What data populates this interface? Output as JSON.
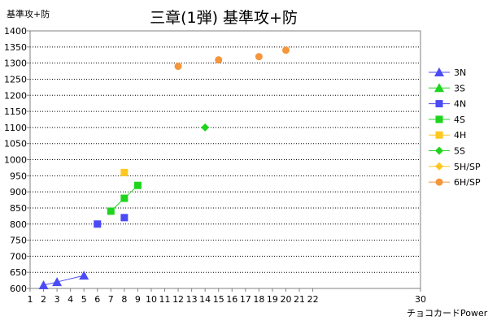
{
  "chart_data": {
    "type": "scatter",
    "title": "三章(1弾) 基準攻+防",
    "ylabel": "基準攻+防",
    "xlabel": "チョコカードPower",
    "xlim": [
      1,
      30
    ],
    "ylim": [
      600,
      1400
    ],
    "x_ticks": [
      1,
      2,
      3,
      4,
      5,
      6,
      7,
      8,
      9,
      10,
      11,
      12,
      13,
      14,
      15,
      16,
      17,
      18,
      19,
      20,
      21,
      22,
      30
    ],
    "y_ticks": [
      600,
      650,
      700,
      750,
      800,
      850,
      900,
      950,
      1000,
      1050,
      1100,
      1150,
      1200,
      1250,
      1300,
      1350,
      1400
    ],
    "grid": true,
    "legend_position": "right",
    "series": [
      {
        "name": "3N",
        "marker": "triangle",
        "color": "#4b4bf5",
        "line": true,
        "points": [
          [
            2,
            610
          ],
          [
            3,
            620
          ],
          [
            5,
            640
          ]
        ]
      },
      {
        "name": "3S",
        "marker": "triangle",
        "color": "#1fd41f",
        "line": true,
        "points": []
      },
      {
        "name": "4N",
        "marker": "square",
        "color": "#4b4bf5",
        "line": false,
        "points": [
          [
            6,
            800
          ],
          [
            8,
            820
          ]
        ]
      },
      {
        "name": "4S",
        "marker": "square",
        "color": "#1fd41f",
        "line": true,
        "points": [
          [
            7,
            840
          ],
          [
            8,
            880
          ],
          [
            9,
            920
          ]
        ]
      },
      {
        "name": "4H",
        "marker": "square",
        "color": "#ffc81e",
        "line": false,
        "points": [
          [
            8,
            960
          ]
        ]
      },
      {
        "name": "5S",
        "marker": "diamond",
        "color": "#1fd41f",
        "line": false,
        "points": [
          [
            14,
            1100
          ]
        ]
      },
      {
        "name": "5H/SP",
        "marker": "diamond",
        "color": "#ffc81e",
        "line": false,
        "points": []
      },
      {
        "name": "6H/SP",
        "marker": "circle",
        "color": "#f5963c",
        "line": false,
        "points": [
          [
            12,
            1290
          ],
          [
            15,
            1310
          ],
          [
            18,
            1320
          ],
          [
            20,
            1340
          ]
        ]
      }
    ]
  }
}
